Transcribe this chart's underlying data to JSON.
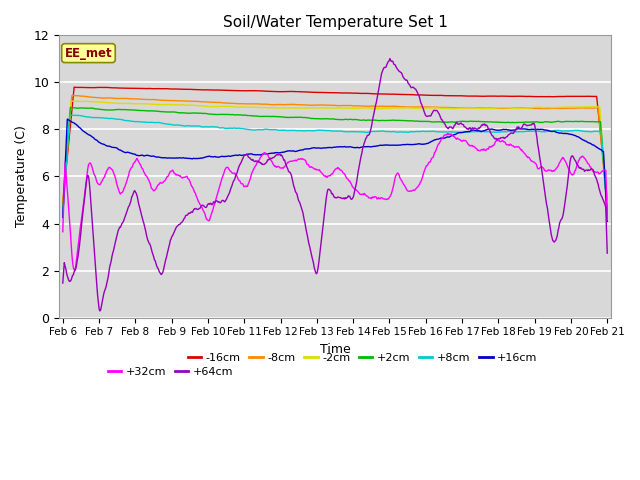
{
  "title": "Soil/Water Temperature Set 1",
  "xlabel": "Time",
  "ylabel": "Temperature (C)",
  "annotation": "EE_met",
  "ylim": [
    0,
    12
  ],
  "y_ticks": [
    0,
    2,
    4,
    6,
    8,
    10,
    12
  ],
  "x_tick_labels": [
    "Feb 6",
    "Feb 7",
    "Feb 8",
    "Feb 9",
    "Feb 10",
    "Feb 11",
    "Feb 12",
    "Feb 13",
    "Feb 14",
    "Feb 15",
    "Feb 16",
    "Feb 17",
    "Feb 18",
    "Feb 19",
    "Feb 20",
    "Feb 21"
  ],
  "series": [
    {
      "label": "-16cm",
      "color": "#dd0000"
    },
    {
      "label": "-8cm",
      "color": "#ff8800"
    },
    {
      "label": "-2cm",
      "color": "#dddd00"
    },
    {
      "label": "+2cm",
      "color": "#00bb00"
    },
    {
      "label": "+8cm",
      "color": "#00cccc"
    },
    {
      "label": "+16cm",
      "color": "#0000cc"
    },
    {
      "label": "+32cm",
      "color": "#ff00ff"
    },
    {
      "label": "+64cm",
      "color": "#9900bb"
    }
  ],
  "bg_color": "#d8d8d8",
  "grid_color": "#ffffff",
  "n_days": 15,
  "n_points": 720
}
